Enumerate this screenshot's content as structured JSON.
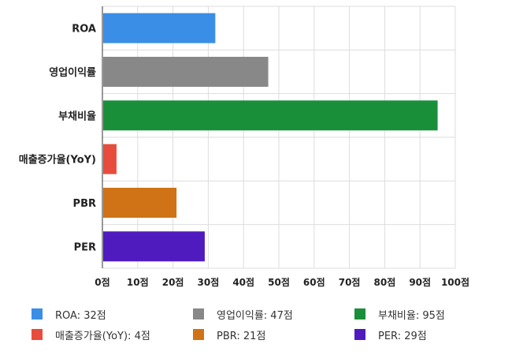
{
  "chart_data": {
    "type": "bar",
    "orientation": "horizontal",
    "categories": [
      "ROA",
      "영업이익률",
      "부채비율",
      "매출증가율(YoY)",
      "PBR",
      "PER"
    ],
    "values": [
      32,
      47,
      95,
      4,
      21,
      29
    ],
    "colors": [
      "#3a8ee6",
      "#888888",
      "#1a8f3a",
      "#e84c3d",
      "#cf7316",
      "#4f1bbf"
    ],
    "xlim": [
      0,
      100
    ],
    "ticks": [
      "0점",
      "10점",
      "20점",
      "30점",
      "40점",
      "50점",
      "60점",
      "70점",
      "80점",
      "90점",
      "100점"
    ],
    "tick_values": [
      0,
      10,
      20,
      30,
      40,
      50,
      60,
      70,
      80,
      90,
      100
    ],
    "grid": true,
    "legend_position": "bottom",
    "legend": [
      "ROA: 32점",
      "영업이익률: 47점",
      "부채비율: 95점",
      "매출증가율(YoY): 4점",
      "PBR: 21점",
      "PER: 29점"
    ]
  }
}
